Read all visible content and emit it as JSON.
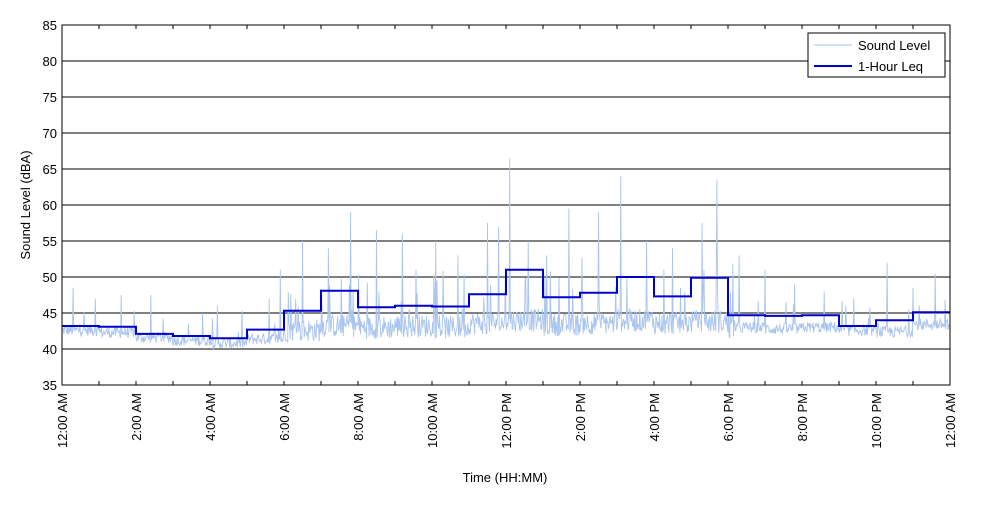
{
  "chart_data": {
    "type": "line",
    "xlabel": "Time (HH:MM)",
    "ylabel": "Sound Level (dBA)",
    "ylim": [
      35,
      85
    ],
    "yticks": [
      35,
      40,
      45,
      50,
      55,
      60,
      65,
      70,
      75,
      80,
      85
    ],
    "xlim_hours": [
      0,
      24
    ],
    "xtick_labels": [
      "12:00 AM",
      "2:00 AM",
      "4:00 AM",
      "6:00 AM",
      "8:00 AM",
      "10:00 AM",
      "12:00 PM",
      "2:00 PM",
      "4:00 PM",
      "6:00 PM",
      "8:00 PM",
      "10:00 PM",
      "12:00 AM"
    ],
    "grid": "horizontal",
    "legend": {
      "position": "top-right",
      "entries": [
        "Sound Level",
        "1-Hour Leq"
      ]
    },
    "series": [
      {
        "name": "Sound Level",
        "color": "#a9c4ee",
        "hourly_baseline": [
          42.6,
          42.3,
          41.6,
          41.2,
          40.8,
          41.4,
          42.6,
          43.2,
          43.0,
          43.2,
          43.0,
          43.6,
          44.0,
          43.4,
          43.6,
          44.0,
          43.6,
          43.8,
          43.0,
          42.8,
          43.0,
          42.6,
          42.4,
          43.4
        ],
        "peaks": [
          {
            "hour": 0.3,
            "value": 48.5
          },
          {
            "hour": 0.9,
            "value": 47
          },
          {
            "hour": 1.6,
            "value": 47.5
          },
          {
            "hour": 2.4,
            "value": 47.5
          },
          {
            "hour": 3.8,
            "value": 45
          },
          {
            "hour": 4.2,
            "value": 46
          },
          {
            "hour": 5.6,
            "value": 47
          },
          {
            "hour": 5.9,
            "value": 51
          },
          {
            "hour": 6.5,
            "value": 55
          },
          {
            "hour": 7.2,
            "value": 54
          },
          {
            "hour": 7.8,
            "value": 59
          },
          {
            "hour": 8.5,
            "value": 56.5
          },
          {
            "hour": 9.2,
            "value": 56
          },
          {
            "hour": 10.1,
            "value": 55
          },
          {
            "hour": 10.7,
            "value": 53
          },
          {
            "hour": 11.5,
            "value": 57.5
          },
          {
            "hour": 11.8,
            "value": 57
          },
          {
            "hour": 12.1,
            "value": 66.5
          },
          {
            "hour": 12.6,
            "value": 55
          },
          {
            "hour": 13.1,
            "value": 53
          },
          {
            "hour": 13.7,
            "value": 59.5
          },
          {
            "hour": 14.5,
            "value": 59
          },
          {
            "hour": 15.1,
            "value": 64
          },
          {
            "hour": 15.8,
            "value": 55
          },
          {
            "hour": 16.5,
            "value": 54
          },
          {
            "hour": 17.3,
            "value": 57.5
          },
          {
            "hour": 17.7,
            "value": 63.5
          },
          {
            "hour": 18.3,
            "value": 53
          },
          {
            "hour": 19.0,
            "value": 51
          },
          {
            "hour": 19.8,
            "value": 49
          },
          {
            "hour": 20.6,
            "value": 48
          },
          {
            "hour": 21.4,
            "value": 47
          },
          {
            "hour": 22.3,
            "value": 52
          },
          {
            "hour": 23.0,
            "value": 48.5
          },
          {
            "hour": 23.6,
            "value": 50.5
          }
        ]
      },
      {
        "name": "1-Hour Leq",
        "color": "#0000cc",
        "values": [
          43.2,
          43.1,
          42.1,
          41.8,
          41.5,
          42.7,
          45.3,
          48.1,
          45.8,
          46.0,
          45.9,
          47.6,
          51.0,
          47.2,
          47.8,
          50.0,
          47.3,
          49.9,
          44.7,
          44.6,
          44.7,
          43.2,
          44.0,
          45.1
        ]
      }
    ]
  }
}
